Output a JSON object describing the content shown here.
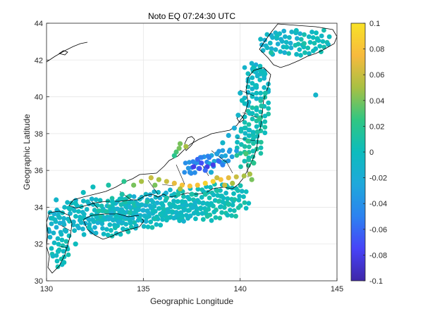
{
  "chart_data": {
    "type": "scatter",
    "title": "Noto EQ 07:24:30 UTC",
    "xlabel": "Geographic Longitude",
    "ylabel": "Geographic Latitude",
    "xlim": [
      130,
      145
    ],
    "ylim": [
      30,
      44
    ],
    "x_ticks": [
      "130",
      "135",
      "140",
      "145"
    ],
    "y_ticks": [
      "30",
      "32",
      "34",
      "36",
      "38",
      "40",
      "42",
      "44"
    ],
    "grid": true,
    "colorbar": {
      "range": [
        -0.1,
        0.1
      ],
      "ticks": [
        "0.1",
        "0.08",
        "0.06",
        "0.04",
        "0.02",
        "0",
        "-0.02",
        "-0.04",
        "-0.06",
        "-0.08",
        "-0.1"
      ],
      "colormap": "parula",
      "colors": [
        "#3e26a8",
        "#4743f8",
        "#2c82f0",
        "#1fa8db",
        "#0dbcbd",
        "#30c682",
        "#a8c043",
        "#f7ba3d",
        "#f9e226"
      ]
    },
    "points": [
      [
        136.9,
        37.45,
        0.04
      ],
      [
        137.2,
        37.3,
        0.05
      ],
      [
        136.85,
        37.2,
        0.04
      ],
      [
        136.7,
        37.0,
        0.03
      ],
      [
        136.6,
        36.8,
        0.02
      ],
      [
        137.8,
        36.6,
        -0.06
      ],
      [
        138.0,
        36.4,
        -0.07
      ],
      [
        138.3,
        36.2,
        -0.08
      ],
      [
        137.6,
        36.2,
        -0.08
      ],
      [
        138.6,
        36.3,
        -0.08
      ],
      [
        138.9,
        36.5,
        -0.06
      ],
      [
        139.1,
        36.3,
        -0.05
      ],
      [
        138.8,
        36.9,
        -0.03
      ],
      [
        138.4,
        36.7,
        -0.05
      ],
      [
        138.0,
        36.7,
        -0.05
      ],
      [
        137.9,
        36.1,
        -0.07
      ],
      [
        138.2,
        36.0,
        -0.06
      ],
      [
        137.4,
        35.9,
        -0.04
      ],
      [
        138.5,
        35.9,
        -0.02
      ],
      [
        135.8,
        35.5,
        0.05
      ],
      [
        136.2,
        35.4,
        0.06
      ],
      [
        136.6,
        35.3,
        0.07
      ],
      [
        137.0,
        35.2,
        0.08
      ],
      [
        137.4,
        35.15,
        0.08
      ],
      [
        137.8,
        35.2,
        0.08
      ],
      [
        138.2,
        35.3,
        0.09
      ],
      [
        138.6,
        35.4,
        0.09
      ],
      [
        139.0,
        35.5,
        0.08
      ],
      [
        139.4,
        35.6,
        0.07
      ],
      [
        139.8,
        35.65,
        0.06
      ],
      [
        140.2,
        35.7,
        0.05
      ],
      [
        140.5,
        35.8,
        0.05
      ],
      [
        135.4,
        35.6,
        0.06
      ],
      [
        134.9,
        35.4,
        0.05
      ],
      [
        134.5,
        35.2,
        0.04
      ],
      [
        135.6,
        35.2,
        0.04
      ],
      [
        136.9,
        35.0,
        0.05
      ],
      [
        139.2,
        35.2,
        0.06
      ],
      [
        138.8,
        35.6,
        0.06
      ],
      [
        140.6,
        35.5,
        0.04
      ],
      [
        139.6,
        35.3,
        0.05
      ],
      [
        140.7,
        36.4,
        0.02
      ],
      [
        140.3,
        36.9,
        0.03
      ],
      [
        140.4,
        37.6,
        0.02
      ],
      [
        140.9,
        38.1,
        0.01
      ],
      [
        141.0,
        38.8,
        0.02
      ],
      [
        141.1,
        39.5,
        0.01
      ],
      [
        141.3,
        40.2,
        0.01
      ],
      [
        140.8,
        40.6,
        0.0
      ],
      [
        140.1,
        39.8,
        0.0
      ],
      [
        139.9,
        39.0,
        -0.01
      ],
      [
        139.7,
        38.3,
        -0.02
      ],
      [
        139.4,
        37.9,
        -0.02
      ],
      [
        139.1,
        37.5,
        -0.01
      ],
      [
        141.2,
        41.3,
        0.0
      ],
      [
        140.7,
        41.6,
        0.0
      ],
      [
        141.6,
        42.4,
        0.01
      ],
      [
        142.4,
        42.7,
        0.0
      ],
      [
        143.3,
        42.9,
        0.01
      ],
      [
        144.0,
        43.1,
        0.0
      ],
      [
        142.9,
        43.6,
        0.0
      ],
      [
        141.9,
        43.3,
        0.0
      ],
      [
        143.9,
        40.1,
        -0.01
      ],
      [
        140.0,
        40.2,
        -0.01
      ],
      [
        140.5,
        39.1,
        0.0
      ],
      [
        131.2,
        33.9,
        0.0
      ],
      [
        131.8,
        33.4,
        0.0
      ],
      [
        131.0,
        32.7,
        -0.01
      ],
      [
        130.6,
        31.6,
        0.0
      ],
      [
        130.9,
        31.0,
        0.0
      ],
      [
        131.5,
        32.0,
        0.0
      ],
      [
        130.3,
        33.4,
        0.0
      ],
      [
        132.7,
        33.8,
        0.01
      ],
      [
        133.4,
        34.3,
        0.0
      ],
      [
        133.9,
        34.7,
        0.01
      ],
      [
        132.9,
        33.3,
        0.0
      ],
      [
        133.6,
        33.5,
        0.0
      ],
      [
        134.3,
        33.7,
        0.01
      ],
      [
        135.2,
        34.3,
        0.01
      ],
      [
        135.5,
        33.8,
        0.0
      ],
      [
        136.2,
        34.5,
        0.01
      ],
      [
        136.8,
        34.7,
        0.01
      ],
      [
        137.5,
        34.7,
        0.01
      ],
      [
        138.2,
        34.7,
        0.01
      ],
      [
        138.8,
        34.9,
        0.01
      ],
      [
        131.9,
        34.8,
        0.0
      ],
      [
        132.4,
        35.1,
        0.0
      ],
      [
        133.2,
        35.2,
        0.01
      ],
      [
        134.0,
        35.4,
        0.02
      ],
      [
        130.5,
        34.4,
        -0.01
      ],
      [
        131.5,
        34.2,
        0.0
      ],
      [
        132.2,
        32.9,
        0.0
      ],
      [
        134.8,
        33.4,
        0.0
      ],
      [
        136.0,
        33.7,
        0.0
      ],
      [
        137.0,
        34.3,
        0.0
      ],
      [
        138.5,
        34.2,
        0.0
      ],
      [
        139.0,
        34.6,
        0.0
      ]
    ]
  }
}
